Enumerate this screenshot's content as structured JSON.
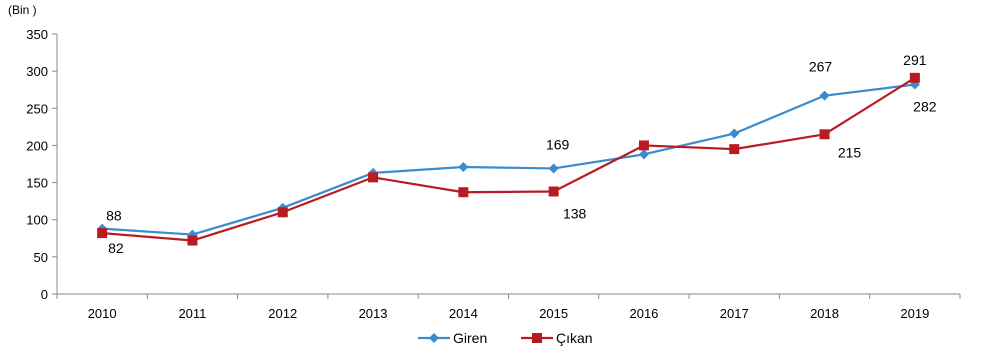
{
  "chart_data": {
    "type": "line",
    "unit_label": "(Bin )",
    "categories": [
      "2010",
      "2011",
      "2012",
      "2013",
      "2014",
      "2015",
      "2016",
      "2017",
      "2018",
      "2019"
    ],
    "series": [
      {
        "name": "Giren",
        "color": "#3a8ccf",
        "marker": "diamond",
        "values": [
          88,
          80,
          116,
          163,
          171,
          169,
          188,
          216,
          267,
          282
        ]
      },
      {
        "name": "Çıkan",
        "color": "#b81c22",
        "marker": "square",
        "values": [
          82,
          72,
          110,
          157,
          137,
          138,
          200,
          195,
          215,
          291
        ]
      }
    ],
    "data_labels": [
      {
        "series": 0,
        "index": 0,
        "text": "88"
      },
      {
        "series": 1,
        "index": 0,
        "text": "82"
      },
      {
        "series": 0,
        "index": 5,
        "text": "169"
      },
      {
        "series": 1,
        "index": 5,
        "text": "138"
      },
      {
        "series": 0,
        "index": 8,
        "text": "267"
      },
      {
        "series": 1,
        "index": 8,
        "text": "215"
      },
      {
        "series": 1,
        "index": 9,
        "text": "291"
      },
      {
        "series": 0,
        "index": 9,
        "text": "282"
      }
    ],
    "y_ticks": [
      "0",
      "50",
      "100",
      "150",
      "200",
      "250",
      "300",
      "350"
    ],
    "ylim": [
      0,
      350
    ],
    "grid": false,
    "legend_position": "bottom-center"
  }
}
